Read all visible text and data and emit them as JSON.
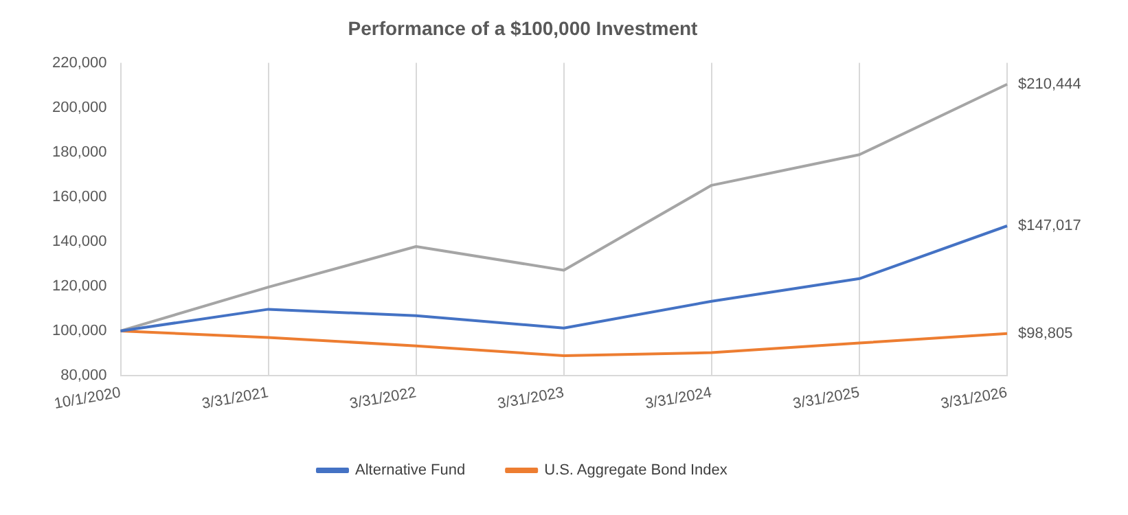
{
  "chart_data": {
    "type": "line",
    "title": "Performance of a $100,000 Investment",
    "categories": [
      "10/1/2020",
      "3/31/2021",
      "3/31/2022",
      "3/31/2023",
      "3/31/2024",
      "3/31/2025",
      "3/31/2026"
    ],
    "series": [
      {
        "name": "Alternative Fund",
        "color": "#4472c4",
        "values": [
          100000,
          109700,
          106800,
          101300,
          113300,
          123400,
          147017
        ],
        "value_labels": [
          null,
          null,
          null,
          null,
          null,
          null,
          "$147,017"
        ]
      },
      {
        "color": "#a5a5a5",
        "values": [
          100000,
          119600,
          137800,
          127200,
          165200,
          178900,
          210444
        ],
        "value_labels": [
          null,
          null,
          null,
          null,
          null,
          null,
          "$210,444"
        ]
      },
      {
        "name": "U.S. Aggregate Bond Index",
        "color": "#ed7d31",
        "values": [
          100000,
          97100,
          93300,
          88900,
          90300,
          94600,
          98805
        ],
        "value_labels": [
          null,
          null,
          null,
          null,
          null,
          null,
          "$98,805"
        ]
      }
    ],
    "ylim": [
      80000,
      220000
    ],
    "yticks": [
      {
        "value": 80000,
        "label": "80,000"
      },
      {
        "value": 100000,
        "label": "100,000"
      },
      {
        "value": 120000,
        "label": "120,000"
      },
      {
        "value": 140000,
        "label": "140,000"
      },
      {
        "value": 160000,
        "label": "160,000"
      },
      {
        "value": 180000,
        "label": "180,000"
      },
      {
        "value": 200000,
        "label": "200,000"
      },
      {
        "value": 220000,
        "label": "220,000"
      }
    ],
    "grid": "x",
    "legend": "bottom",
    "marker": "none",
    "line_style": "solid"
  }
}
